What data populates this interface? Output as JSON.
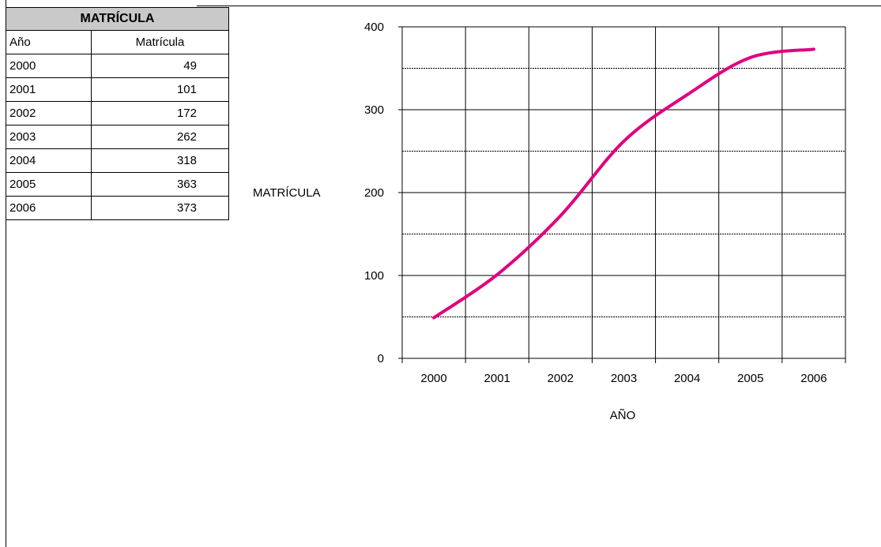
{
  "table": {
    "title": "MATRÍCULA",
    "headers": [
      "Año",
      "Matrícula"
    ],
    "rows": [
      [
        "2000",
        "49"
      ],
      [
        "2001",
        "101"
      ],
      [
        "2002",
        "172"
      ],
      [
        "2003",
        "262"
      ],
      [
        "2004",
        "318"
      ],
      [
        "2005",
        "363"
      ],
      [
        "2006",
        "373"
      ]
    ]
  },
  "chart_data": {
    "type": "line",
    "title": "",
    "xlabel": "AÑO",
    "ylabel": "MATRÍCULA",
    "categories": [
      "2000",
      "2001",
      "2002",
      "2003",
      "2004",
      "2005",
      "2006"
    ],
    "values": [
      49,
      101,
      172,
      262,
      318,
      363,
      373
    ],
    "ylim": [
      0,
      400
    ],
    "yticks": [
      0,
      100,
      200,
      300,
      400
    ],
    "grid": true,
    "line_color": "#e0007e"
  }
}
